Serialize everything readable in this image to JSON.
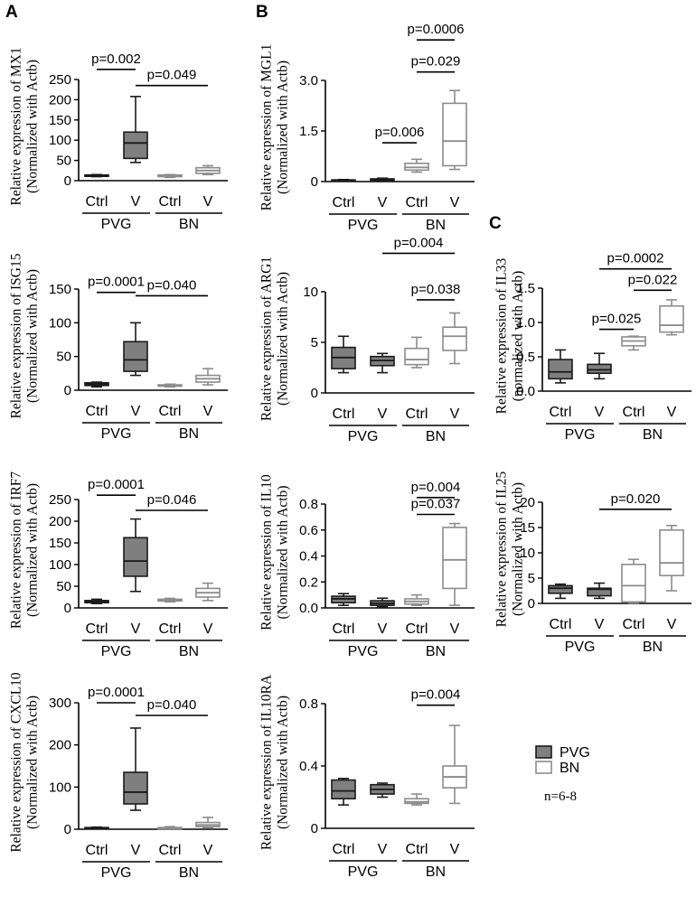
{
  "panels": [
    {
      "letter": "A"
    },
    {
      "letter": "B"
    },
    {
      "letter": "C"
    }
  ],
  "legend": {
    "items": [
      {
        "label": "PVG",
        "fill": "#7f7f7f",
        "stroke": "#1a1a1a"
      },
      {
        "label": "BN",
        "fill": "#ffffff",
        "stroke": "#8c8c8c"
      }
    ],
    "note": "n=6-8"
  },
  "chart_data": [
    {
      "type": "box",
      "panel": "A",
      "ylabel": "Relative expression of MX1",
      "ylabel2": "(Normalized with Actb)",
      "ylim": [
        0,
        250
      ],
      "yticks": [
        0,
        50,
        100,
        150,
        200,
        250
      ],
      "categories": [
        "Ctrl",
        "V",
        "Ctrl",
        "V"
      ],
      "groups": [
        "PVG",
        "BN"
      ],
      "boxes": [
        {
          "series": "PVG",
          "min": 10,
          "q1": 11,
          "median": 12,
          "q3": 14,
          "max": 15
        },
        {
          "series": "PVG",
          "min": 45,
          "q1": 55,
          "median": 93,
          "q3": 120,
          "max": 208
        },
        {
          "series": "BN",
          "min": 8,
          "q1": 10,
          "median": 12,
          "q3": 14,
          "max": 15
        },
        {
          "series": "BN",
          "min": 15,
          "q1": 18,
          "median": 25,
          "q3": 32,
          "max": 37
        }
      ],
      "comparisons": [
        {
          "label": "p=0.002",
          "from": 0,
          "to": 1,
          "at": 275
        },
        {
          "label": "p=0.049",
          "from": 1,
          "to": 3,
          "at": 235
        }
      ]
    },
    {
      "type": "box",
      "panel": "A",
      "ylabel": "Relative expression of ISG15",
      "ylabel2": "(Normalized with Actb)",
      "ylim": [
        0,
        150
      ],
      "yticks": [
        0,
        50,
        100,
        150
      ],
      "categories": [
        "Ctrl",
        "V",
        "Ctrl",
        "V"
      ],
      "groups": [
        "PVG",
        "BN"
      ],
      "boxes": [
        {
          "series": "PVG",
          "min": 5,
          "q1": 7,
          "median": 9,
          "q3": 11,
          "max": 12
        },
        {
          "series": "PVG",
          "min": 22,
          "q1": 28,
          "median": 45,
          "q3": 72,
          "max": 100
        },
        {
          "series": "BN",
          "min": 5,
          "q1": 6,
          "median": 7,
          "q3": 8,
          "max": 9
        },
        {
          "series": "BN",
          "min": 8,
          "q1": 12,
          "median": 17,
          "q3": 22,
          "max": 32
        }
      ],
      "comparisons": [
        {
          "label": "p=0.0001",
          "from": 0,
          "to": 1,
          "at": 145
        },
        {
          "label": "p=0.040",
          "from": 1,
          "to": 3,
          "at": 140
        }
      ]
    },
    {
      "type": "box",
      "panel": "A",
      "ylabel": "Relative expression of IRF7",
      "ylabel2": "(Normalized with Actb)",
      "ylim": [
        0,
        250
      ],
      "yticks": [
        0,
        50,
        100,
        150,
        200,
        250
      ],
      "categories": [
        "Ctrl",
        "V",
        "Ctrl",
        "V"
      ],
      "groups": [
        "PVG",
        "BN"
      ],
      "boxes": [
        {
          "series": "PVG",
          "min": 10,
          "q1": 12,
          "median": 14,
          "q3": 17,
          "max": 20
        },
        {
          "series": "PVG",
          "min": 38,
          "q1": 73,
          "median": 108,
          "q3": 162,
          "max": 205
        },
        {
          "series": "BN",
          "min": 14,
          "q1": 16,
          "median": 18,
          "q3": 20,
          "max": 22
        },
        {
          "series": "BN",
          "min": 17,
          "q1": 25,
          "median": 35,
          "q3": 45,
          "max": 57
        }
      ],
      "comparisons": [
        {
          "label": "p=0.0001",
          "from": 0,
          "to": 1,
          "at": 260
        },
        {
          "label": "p=0.046",
          "from": 1,
          "to": 3,
          "at": 225
        }
      ]
    },
    {
      "type": "box",
      "panel": "A",
      "ylabel": "Relative expression of CXCL10",
      "ylabel2": "(Normalized with Actb)",
      "ylim": [
        0,
        300
      ],
      "yticks": [
        0,
        100,
        200,
        300
      ],
      "categories": [
        "Ctrl",
        "V",
        "Ctrl",
        "V"
      ],
      "groups": [
        "PVG",
        "BN"
      ],
      "boxes": [
        {
          "series": "PVG",
          "min": 1,
          "q1": 2,
          "median": 3,
          "q3": 4,
          "max": 5
        },
        {
          "series": "PVG",
          "min": 45,
          "q1": 60,
          "median": 88,
          "q3": 135,
          "max": 240
        },
        {
          "series": "BN",
          "min": 1,
          "q1": 2,
          "median": 3,
          "q3": 4,
          "max": 6
        },
        {
          "series": "BN",
          "min": 3,
          "q1": 6,
          "median": 10,
          "q3": 16,
          "max": 28
        }
      ],
      "comparisons": [
        {
          "label": "p=0.0001",
          "from": 0,
          "to": 1,
          "at": 300
        },
        {
          "label": "p=0.040",
          "from": 1,
          "to": 3,
          "at": 270
        }
      ]
    },
    {
      "type": "box",
      "panel": "B",
      "ylabel": "Relative expression of MGL1",
      "ylabel2": "(Normalized with Actb)",
      "ylim": [
        0,
        3.0
      ],
      "yticks": [
        "0",
        "1.5",
        "3.0"
      ],
      "categories": [
        "Ctrl",
        "V",
        "Ctrl",
        "V"
      ],
      "groups": [
        "PVG",
        "BN"
      ],
      "boxes": [
        {
          "series": "PVG",
          "min": 0.02,
          "q1": 0.03,
          "median": 0.04,
          "q3": 0.05,
          "max": 0.06
        },
        {
          "series": "PVG",
          "min": 0.02,
          "q1": 0.04,
          "median": 0.06,
          "q3": 0.08,
          "max": 0.1
        },
        {
          "series": "BN",
          "min": 0.28,
          "q1": 0.34,
          "median": 0.42,
          "q3": 0.54,
          "max": 0.66
        },
        {
          "series": "BN",
          "min": 0.36,
          "q1": 0.47,
          "median": 1.2,
          "q3": 2.32,
          "max": 2.7
        }
      ],
      "comparisons": [
        {
          "label": "p=0.0006",
          "from": 2,
          "to": 3,
          "at": 4.2
        },
        {
          "label": "p=0.029",
          "from": 2,
          "to": 3,
          "at": 3.25
        },
        {
          "label": "p=0.006",
          "from": 1,
          "to": 2,
          "at": 1.15
        }
      ]
    },
    {
      "type": "box",
      "panel": "B",
      "ylabel": "Relative expression of ARG1",
      "ylabel2": "(Normalized with Actb)",
      "ylim": [
        0,
        10
      ],
      "yticks": [
        "0",
        "5",
        "10"
      ],
      "categories": [
        "Ctrl",
        "V",
        "Ctrl",
        "V"
      ],
      "groups": [
        "PVG",
        "BN"
      ],
      "boxes": [
        {
          "series": "PVG",
          "min": 2.0,
          "q1": 2.4,
          "median": 3.5,
          "q3": 4.5,
          "max": 5.6
        },
        {
          "series": "PVG",
          "min": 2.0,
          "q1": 2.7,
          "median": 3.2,
          "q3": 3.6,
          "max": 3.9
        },
        {
          "series": "BN",
          "min": 2.5,
          "q1": 2.8,
          "median": 3.3,
          "q3": 4.4,
          "max": 5.5
        },
        {
          "series": "BN",
          "min": 2.9,
          "q1": 4.2,
          "median": 5.6,
          "q3": 6.5,
          "max": 7.9
        }
      ],
      "comparisons": [
        {
          "label": "p=0.004",
          "from": 1,
          "to": 3,
          "at": 13.8
        },
        {
          "label": "p=0.038",
          "from": 2,
          "to": 3,
          "at": 9.2
        }
      ]
    },
    {
      "type": "box",
      "panel": "B",
      "ylabel": "Relative expression of IL10",
      "ylabel2": "(Normalized with Actb)",
      "ylim": [
        0,
        0.8
      ],
      "yticks": [
        "0.0",
        "0.2",
        "0.4",
        "0.6",
        "0.8"
      ],
      "categories": [
        "Ctrl",
        "V",
        "Ctrl",
        "V"
      ],
      "groups": [
        "PVG",
        "BN"
      ],
      "boxes": [
        {
          "series": "PVG",
          "min": 0.02,
          "q1": 0.04,
          "median": 0.07,
          "q3": 0.09,
          "max": 0.11
        },
        {
          "series": "PVG",
          "min": 0.01,
          "q1": 0.02,
          "median": 0.035,
          "q3": 0.055,
          "max": 0.075
        },
        {
          "series": "BN",
          "min": 0.02,
          "q1": 0.03,
          "median": 0.05,
          "q3": 0.07,
          "max": 0.1
        },
        {
          "series": "BN",
          "min": 0.02,
          "q1": 0.15,
          "median": 0.37,
          "q3": 0.62,
          "max": 0.65
        }
      ],
      "comparisons": [
        {
          "label": "p=0.004",
          "from": 2,
          "to": 3,
          "at": 0.85
        },
        {
          "label": "p=0.037",
          "from": 2,
          "to": 3,
          "at": 0.72
        }
      ]
    },
    {
      "type": "box",
      "panel": "B",
      "ylabel": "Relative expression of IL10RA",
      "ylabel2": "(Normalized with Actb)",
      "ylim": [
        0,
        0.8
      ],
      "yticks": [
        "0",
        "0.4",
        "0.8"
      ],
      "categories": [
        "Ctrl",
        "V",
        "Ctrl",
        "V"
      ],
      "groups": [
        "PVG",
        "BN"
      ],
      "boxes": [
        {
          "series": "PVG",
          "min": 0.15,
          "q1": 0.19,
          "median": 0.24,
          "q3": 0.31,
          "max": 0.32
        },
        {
          "series": "PVG",
          "min": 0.2,
          "q1": 0.22,
          "median": 0.25,
          "q3": 0.28,
          "max": 0.29
        },
        {
          "series": "BN",
          "min": 0.15,
          "q1": 0.16,
          "median": 0.17,
          "q3": 0.19,
          "max": 0.22
        },
        {
          "series": "BN",
          "min": 0.16,
          "q1": 0.26,
          "median": 0.33,
          "q3": 0.4,
          "max": 0.66
        }
      ],
      "comparisons": [
        {
          "label": "p=0.004",
          "from": 2,
          "to": 3,
          "at": 0.79
        }
      ]
    },
    {
      "type": "box",
      "panel": "C",
      "ylabel": "Relative expression of IL33",
      "ylabel2": "(normalized with Actb)",
      "ylim": [
        0,
        1.5
      ],
      "yticks": [
        "0.0",
        "0.5",
        "1.0",
        "1.5"
      ],
      "categories": [
        "Ctrl",
        "V",
        "Ctrl",
        "V"
      ],
      "groups": [
        "PVG",
        "BN"
      ],
      "boxes": [
        {
          "series": "PVG",
          "min": 0.12,
          "q1": 0.18,
          "median": 0.28,
          "q3": 0.46,
          "max": 0.6
        },
        {
          "series": "PVG",
          "min": 0.18,
          "q1": 0.26,
          "median": 0.31,
          "q3": 0.39,
          "max": 0.55
        },
        {
          "series": "BN",
          "min": 0.6,
          "q1": 0.66,
          "median": 0.73,
          "q3": 0.79,
          "max": 0.8
        },
        {
          "series": "BN",
          "min": 0.82,
          "q1": 0.86,
          "median": 0.96,
          "q3": 1.24,
          "max": 1.33
        }
      ],
      "comparisons": [
        {
          "label": "p=0.0002",
          "from": 1,
          "to": 3,
          "at": 1.78
        },
        {
          "label": "p=0.022",
          "from": 2,
          "to": 3,
          "at": 1.47
        },
        {
          "label": "p=0.025",
          "from": 1,
          "to": 2,
          "at": 0.9
        }
      ]
    },
    {
      "type": "box",
      "panel": "C",
      "ylabel": "Relative expression of IL25",
      "ylabel2": "(Normalized with Actb)",
      "ylim": [
        0,
        20
      ],
      "yticks": [
        "0",
        "5",
        "10",
        "15",
        "20"
      ],
      "categories": [
        "Ctrl",
        "V",
        "Ctrl",
        "V"
      ],
      "groups": [
        "PVG",
        "BN"
      ],
      "boxes": [
        {
          "series": "PVG",
          "min": 1.0,
          "q1": 2.0,
          "median": 3.0,
          "q3": 3.5,
          "max": 3.8
        },
        {
          "series": "PVG",
          "min": 1.0,
          "q1": 1.5,
          "median": 2.8,
          "q3": 3.0,
          "max": 4.0
        },
        {
          "series": "BN",
          "min": 0.1,
          "q1": 0.3,
          "median": 3.5,
          "q3": 7.7,
          "max": 8.7
        },
        {
          "series": "BN",
          "min": 2.5,
          "q1": 5.5,
          "median": 8.0,
          "q3": 14.5,
          "max": 15.4
        }
      ],
      "comparisons": [
        {
          "label": "p=0.020",
          "from": 1,
          "to": 3,
          "at": 18.6
        }
      ]
    }
  ]
}
